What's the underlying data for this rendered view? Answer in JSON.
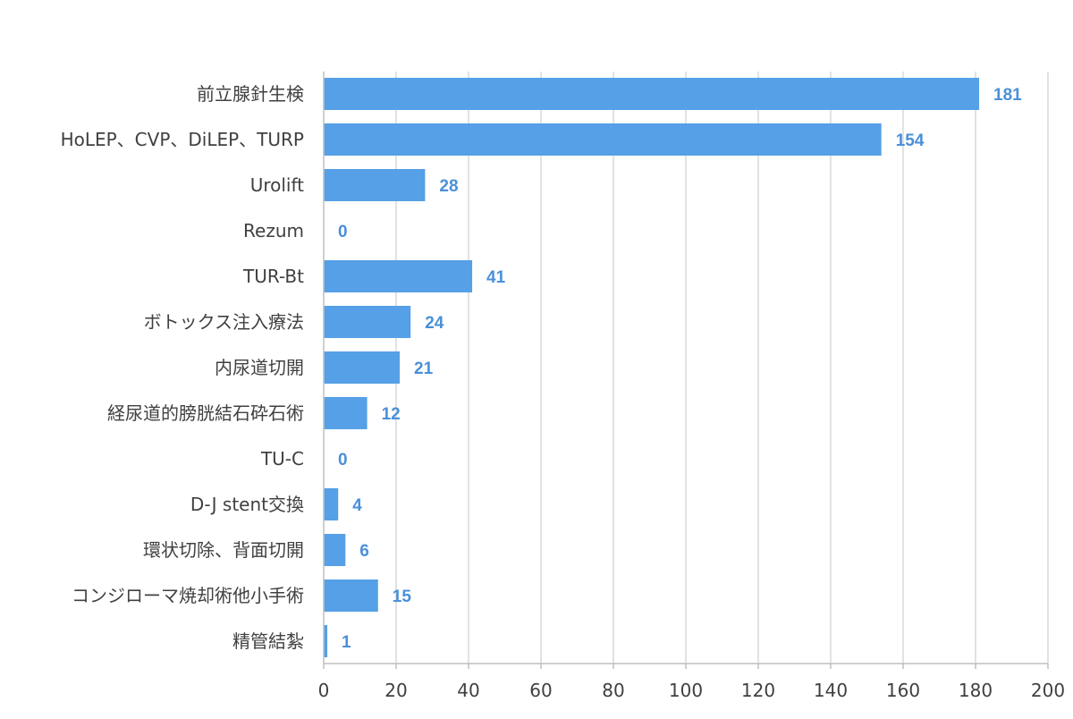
{
  "chart_data": {
    "type": "bar",
    "orientation": "horizontal",
    "categories": [
      "前立腺針生検",
      "HoLEP、CVP、DiLEP、TURP",
      "Urolift",
      "Rezum",
      "TUR-Bt",
      "ボトックス注入療法",
      "内尿道切開",
      "経尿道的膀胱結石砕石術",
      "TU-C",
      "D-J stent交換",
      "環状切除、背面切開",
      "コンジローマ焼却術他小手術",
      "精管結紮"
    ],
    "values": [
      181,
      154,
      28,
      0,
      41,
      24,
      21,
      12,
      0,
      4,
      6,
      15,
      1
    ],
    "data_labels": [
      "181",
      "154",
      "28",
      "0",
      "41",
      "24",
      "21",
      "12",
      "0",
      "4",
      "6",
      "15",
      "1"
    ],
    "xlim": [
      0,
      200
    ],
    "x_ticks": [
      "0",
      "20",
      "40",
      "60",
      "80",
      "100",
      "120",
      "140",
      "160",
      "180",
      "200"
    ],
    "title": "",
    "xlabel": "",
    "ylabel": "",
    "grid": "vertical",
    "legend": "none",
    "colors": {
      "bar": "#55a0e6",
      "data_label": "#4a90d9",
      "gridline": "#d9d9d9",
      "axis": "#bfbfbf",
      "text": "#404040"
    }
  }
}
